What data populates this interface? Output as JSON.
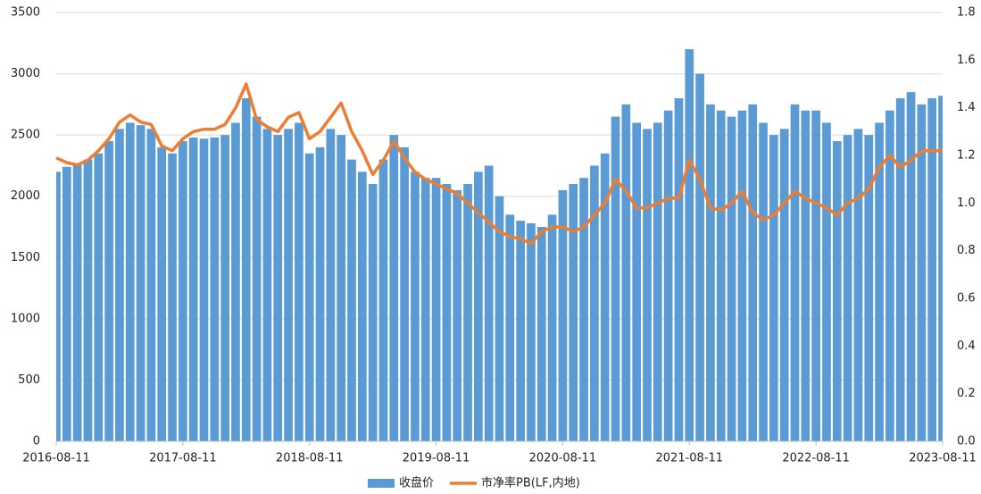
{
  "chart_data": {
    "type": "bar-line",
    "categories": [
      "2016-08-11",
      null,
      null,
      null,
      null,
      null,
      null,
      null,
      null,
      null,
      null,
      null,
      "2017-08-11",
      null,
      null,
      null,
      null,
      null,
      null,
      null,
      null,
      null,
      null,
      null,
      "2018-08-11",
      null,
      null,
      null,
      null,
      null,
      null,
      null,
      null,
      null,
      null,
      null,
      "2019-08-11",
      null,
      null,
      null,
      null,
      null,
      null,
      null,
      null,
      null,
      null,
      null,
      "2020-08-11",
      null,
      null,
      null,
      null,
      null,
      null,
      null,
      null,
      null,
      null,
      null,
      "2021-08-11",
      null,
      null,
      null,
      null,
      null,
      null,
      null,
      null,
      null,
      null,
      null,
      "2022-08-11",
      null,
      null,
      null,
      null,
      null,
      null,
      null,
      null,
      null,
      null,
      null,
      "2023-08-11"
    ],
    "series": [
      {
        "name": "收盘价",
        "color": "#5b9bd5",
        "kind": "bar",
        "values": [
          2200,
          2240,
          2260,
          2300,
          2350,
          2450,
          2550,
          2600,
          2580,
          2550,
          2400,
          2350,
          2450,
          2480,
          2470,
          2480,
          2500,
          2600,
          2800,
          2650,
          2550,
          2500,
          2550,
          2600,
          2350,
          2400,
          2550,
          2500,
          2300,
          2200,
          2100,
          2300,
          2500,
          2400,
          2200,
          2150,
          2150,
          2100,
          2050,
          2100,
          2200,
          2250,
          2000,
          1850,
          1800,
          1780,
          1750,
          1850,
          2050,
          2100,
          2150,
          2250,
          2350,
          2650,
          2750,
          2600,
          2550,
          2600,
          2700,
          2800,
          3200,
          3000,
          2750,
          2700,
          2650,
          2700,
          2750,
          2600,
          2500,
          2550,
          2750,
          2700,
          2700,
          2600,
          2450,
          2500,
          2550,
          2500,
          2600,
          2700,
          2800,
          2850,
          2750,
          2800,
          2820
        ]
      },
      {
        "name": "市净率PB(LF,内地)",
        "color": "#ed7d31",
        "kind": "line",
        "axis": "y2",
        "values": [
          1.19,
          1.17,
          1.16,
          1.18,
          1.22,
          1.27,
          1.34,
          1.37,
          1.34,
          1.33,
          1.24,
          1.22,
          1.27,
          1.3,
          1.31,
          1.31,
          1.33,
          1.4,
          1.5,
          1.35,
          1.32,
          1.3,
          1.36,
          1.38,
          1.27,
          1.3,
          1.36,
          1.42,
          1.3,
          1.22,
          1.12,
          1.18,
          1.26,
          1.19,
          1.13,
          1.1,
          1.08,
          1.06,
          1.04,
          1.0,
          0.96,
          0.92,
          0.88,
          0.86,
          0.85,
          0.83,
          0.88,
          0.9,
          0.9,
          0.88,
          0.9,
          0.95,
          1.0,
          1.1,
          1.05,
          0.98,
          0.98,
          1.0,
          1.02,
          1.02,
          1.18,
          1.1,
          0.98,
          0.97,
          1.0,
          1.05,
          0.96,
          0.93,
          0.95,
          1.0,
          1.05,
          1.02,
          1.0,
          0.98,
          0.95,
          1.0,
          1.02,
          1.06,
          1.15,
          1.2,
          1.15,
          1.18,
          1.22,
          1.22,
          1.22
        ]
      }
    ],
    "ylim": [
      0,
      3500
    ],
    "yticks": [
      0,
      500,
      1000,
      1500,
      2000,
      2500,
      3000,
      3500
    ],
    "y2lim": [
      0,
      1.8
    ],
    "y2ticks": [
      {
        "value": 0,
        "label": "0.0"
      },
      0.2,
      0.4,
      0.6,
      0.8,
      {
        "value": 1,
        "label": "1.0"
      },
      1.2,
      1.4,
      1.6,
      1.8
    ],
    "grid": true,
    "legend": "bottom"
  }
}
